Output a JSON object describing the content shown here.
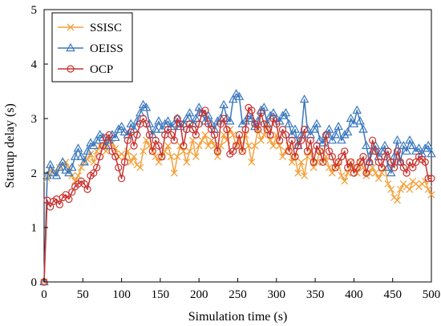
{
  "chart_data": {
    "type": "line",
    "xlabel": "Simulation time (s)",
    "ylabel": "Startup delay (s)",
    "xlim": [
      0,
      500
    ],
    "ylim": [
      0,
      5
    ],
    "xticks": [
      0,
      50,
      100,
      150,
      200,
      250,
      300,
      350,
      400,
      450,
      500
    ],
    "yticks": [
      0,
      1,
      2,
      3,
      4,
      5
    ],
    "grid": false,
    "legend_position": "top-left",
    "series": [
      {
        "name": "SSISC",
        "color": "#F4A13C",
        "marker": "x",
        "x": [
          0,
          4,
          8,
          12,
          16,
          20,
          24,
          28,
          32,
          36,
          40,
          44,
          48,
          52,
          56,
          60,
          64,
          68,
          72,
          76,
          80,
          84,
          88,
          92,
          96,
          100,
          104,
          108,
          112,
          116,
          120,
          124,
          128,
          132,
          136,
          140,
          144,
          148,
          152,
          156,
          160,
          164,
          168,
          172,
          176,
          180,
          184,
          188,
          192,
          196,
          200,
          204,
          208,
          212,
          216,
          220,
          224,
          228,
          232,
          236,
          240,
          244,
          248,
          252,
          256,
          260,
          264,
          268,
          272,
          276,
          280,
          284,
          288,
          292,
          296,
          300,
          304,
          308,
          312,
          316,
          320,
          324,
          328,
          332,
          336,
          340,
          344,
          348,
          352,
          356,
          360,
          364,
          368,
          372,
          376,
          380,
          384,
          388,
          392,
          396,
          400,
          404,
          408,
          412,
          416,
          420,
          424,
          428,
          432,
          436,
          440,
          444,
          448,
          452,
          456,
          460,
          464,
          468,
          472,
          476,
          480,
          484,
          488,
          492,
          496,
          500
        ],
        "values": [
          0,
          1.9,
          2.05,
          2.0,
          2.0,
          2.1,
          2.15,
          2.2,
          2.1,
          1.95,
          1.85,
          1.95,
          2.1,
          2.2,
          2.25,
          2.35,
          2.2,
          2.4,
          2.5,
          2.45,
          2.4,
          2.6,
          2.55,
          2.45,
          2.3,
          2.35,
          2.3,
          2.4,
          2.2,
          2.3,
          2.15,
          2.1,
          2.4,
          2.6,
          2.5,
          2.4,
          2.3,
          2.2,
          2.3,
          2.4,
          2.5,
          2.3,
          2.0,
          2.3,
          2.5,
          2.4,
          2.2,
          2.4,
          2.6,
          2.3,
          2.5,
          2.6,
          2.7,
          2.5,
          2.6,
          2.5,
          2.3,
          2.5,
          2.7,
          2.6,
          2.8,
          2.7,
          2.5,
          2.6,
          2.4,
          2.7,
          2.5,
          2.2,
          2.5,
          2.8,
          2.6,
          2.7,
          2.9,
          2.6,
          2.5,
          2.7,
          2.5,
          2.3,
          2.4,
          2.5,
          2.2,
          2.3,
          2.0,
          2.2,
          1.95,
          2.3,
          2.4,
          2.1,
          2.2,
          2.4,
          2.2,
          2.3,
          2.1,
          2.0,
          2.1,
          2.2,
          1.95,
          1.85,
          2.0,
          2.2,
          2.1,
          2.0,
          2.2,
          2.1,
          1.95,
          2.0,
          2.1,
          2.0,
          1.9,
          2.0,
          2.1,
          1.8,
          1.7,
          1.55,
          1.5,
          1.7,
          1.8,
          1.75,
          1.7,
          1.85,
          1.8,
          1.75,
          1.8,
          1.85,
          1.7,
          1.6
        ]
      },
      {
        "name": "OEISS",
        "color": "#3A78BE",
        "marker": "triangle",
        "x": [
          0,
          4,
          8,
          12,
          16,
          20,
          24,
          28,
          32,
          36,
          40,
          44,
          48,
          52,
          56,
          60,
          64,
          68,
          72,
          76,
          80,
          84,
          88,
          92,
          96,
          100,
          104,
          108,
          112,
          116,
          120,
          124,
          128,
          132,
          136,
          140,
          144,
          148,
          152,
          156,
          160,
          164,
          168,
          172,
          176,
          180,
          184,
          188,
          192,
          196,
          200,
          204,
          208,
          212,
          216,
          220,
          224,
          228,
          232,
          236,
          240,
          244,
          248,
          252,
          256,
          260,
          264,
          268,
          272,
          276,
          280,
          284,
          288,
          292,
          296,
          300,
          304,
          308,
          312,
          316,
          320,
          324,
          328,
          332,
          336,
          340,
          344,
          348,
          352,
          356,
          360,
          364,
          368,
          372,
          376,
          380,
          384,
          388,
          392,
          396,
          400,
          404,
          408,
          412,
          416,
          420,
          424,
          428,
          432,
          436,
          440,
          444,
          448,
          452,
          456,
          460,
          464,
          468,
          472,
          476,
          480,
          484,
          488,
          492,
          496,
          500
        ],
        "values": [
          0,
          1.95,
          2.15,
          2.0,
          1.95,
          2.1,
          2.2,
          2.05,
          2.0,
          2.1,
          2.3,
          2.45,
          2.3,
          2.2,
          2.4,
          2.55,
          2.5,
          2.6,
          2.7,
          2.65,
          2.5,
          2.6,
          2.7,
          2.65,
          2.8,
          2.85,
          2.75,
          2.7,
          2.9,
          2.8,
          2.95,
          3.1,
          3.25,
          3.2,
          2.9,
          2.7,
          2.8,
          2.95,
          2.8,
          2.9,
          2.95,
          2.85,
          2.9,
          3.0,
          2.85,
          2.9,
          3.0,
          3.1,
          2.9,
          3.0,
          3.2,
          3.1,
          2.95,
          3.05,
          2.9,
          2.8,
          2.95,
          3.0,
          3.25,
          3.0,
          2.95,
          3.35,
          3.45,
          3.4,
          2.9,
          2.95,
          3.05,
          3.0,
          2.85,
          2.95,
          3.15,
          3.2,
          2.9,
          3.05,
          3.1,
          3.0,
          2.95,
          3.05,
          3.1,
          2.9,
          2.7,
          2.8,
          2.5,
          2.7,
          3.35,
          2.8,
          2.7,
          2.8,
          2.9,
          2.6,
          2.55,
          2.7,
          2.8,
          2.6,
          2.7,
          2.85,
          2.6,
          2.7,
          2.75,
          3.0,
          2.9,
          3.15,
          2.95,
          2.8,
          2.5,
          2.2,
          2.4,
          2.5,
          2.3,
          2.4,
          2.5,
          2.1,
          2.0,
          2.3,
          2.6,
          2.2,
          2.5,
          2.4,
          2.6,
          2.5,
          2.4,
          2.45,
          2.35,
          2.45,
          2.5,
          2.35
        ]
      },
      {
        "name": "OCP",
        "color": "#C8302E",
        "marker": "circle",
        "x": [
          0,
          4,
          8,
          12,
          16,
          20,
          24,
          28,
          32,
          36,
          40,
          44,
          48,
          52,
          56,
          60,
          64,
          68,
          72,
          76,
          80,
          84,
          88,
          92,
          96,
          100,
          104,
          108,
          112,
          116,
          120,
          124,
          128,
          132,
          136,
          140,
          144,
          148,
          152,
          156,
          160,
          164,
          168,
          172,
          176,
          180,
          184,
          188,
          192,
          196,
          200,
          204,
          208,
          212,
          216,
          220,
          224,
          228,
          232,
          236,
          240,
          244,
          248,
          252,
          256,
          260,
          264,
          268,
          272,
          276,
          280,
          284,
          288,
          292,
          296,
          300,
          304,
          308,
          312,
          316,
          320,
          324,
          328,
          332,
          336,
          340,
          344,
          348,
          352,
          356,
          360,
          364,
          368,
          372,
          376,
          380,
          384,
          388,
          392,
          396,
          400,
          404,
          408,
          412,
          416,
          420,
          424,
          428,
          432,
          436,
          440,
          444,
          448,
          452,
          456,
          460,
          464,
          468,
          472,
          476,
          480,
          484,
          488,
          492,
          496,
          500
        ],
        "values": [
          0,
          1.5,
          1.38,
          1.48,
          1.52,
          1.42,
          1.55,
          1.6,
          1.52,
          1.65,
          1.75,
          1.8,
          1.85,
          1.8,
          1.7,
          1.95,
          2.0,
          2.1,
          2.3,
          2.5,
          2.65,
          2.7,
          2.4,
          2.3,
          2.1,
          1.9,
          2.2,
          2.6,
          2.75,
          2.5,
          2.7,
          2.9,
          3.0,
          2.9,
          2.7,
          2.4,
          2.6,
          2.5,
          2.3,
          2.7,
          2.8,
          2.7,
          2.6,
          3.0,
          2.9,
          2.5,
          2.8,
          2.9,
          2.8,
          2.7,
          2.9,
          3.1,
          3.15,
          2.9,
          2.8,
          2.7,
          2.4,
          2.9,
          3.0,
          2.8,
          2.35,
          2.4,
          2.5,
          2.7,
          2.4,
          2.8,
          3.2,
          3.15,
          2.9,
          2.8,
          3.1,
          2.9,
          2.8,
          2.7,
          3.0,
          2.9,
          2.6,
          2.8,
          2.7,
          2.4,
          2.6,
          2.3,
          2.5,
          2.6,
          2.8,
          2.4,
          2.6,
          2.2,
          2.5,
          2.4,
          2.2,
          2.7,
          2.4,
          2.3,
          2.1,
          2.2,
          2.3,
          2.4,
          2.1,
          2.2,
          2.0,
          2.1,
          2.2,
          2.3,
          2.0,
          2.2,
          2.6,
          2.4,
          2.2,
          2.1,
          2.3,
          2.4,
          2.2,
          2.1,
          2.4,
          2.2,
          2.1,
          2.0,
          2.2,
          2.1,
          2.2,
          2.3,
          2.25,
          2.2,
          1.9,
          1.9
        ]
      }
    ]
  }
}
